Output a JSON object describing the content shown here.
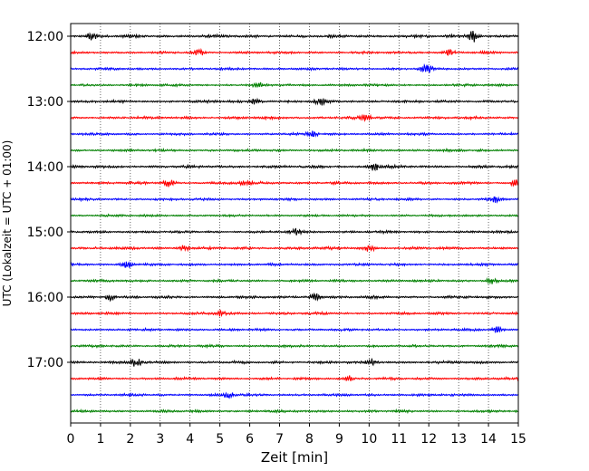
{
  "chart_data": {
    "type": "line",
    "title": "",
    "xlabel": "Zeit  [min]",
    "ylabel": "UTC (Lokalzeit = UTC + 01:00)",
    "xlim": [
      0,
      15
    ],
    "x_ticks": [
      0,
      1,
      2,
      3,
      4,
      5,
      6,
      7,
      8,
      9,
      10,
      11,
      12,
      13,
      14,
      15
    ],
    "grid": "vertical dotted at x ticks",
    "y_ticks": [
      "12:00",
      "13:00",
      "14:00",
      "15:00",
      "16:00",
      "17:00"
    ],
    "trace_minutes": 15,
    "trace_start": "12:00",
    "trace_count": 24,
    "color_cycle": [
      "#000000",
      "#ff0000",
      "#0000ff",
      "#008000"
    ],
    "series": [
      {
        "start": "12:00",
        "color": "#000000",
        "amplitude": 0.12,
        "bursts": [
          {
            "x": 0.7,
            "amplitude": 0.25
          },
          {
            "x": 13.5,
            "amplitude": 0.4
          }
        ]
      },
      {
        "start": "12:15",
        "color": "#ff0000",
        "amplitude": 0.1,
        "bursts": [
          {
            "x": 4.3,
            "amplitude": 0.2
          },
          {
            "x": 12.7,
            "amplitude": 0.2
          }
        ]
      },
      {
        "start": "12:30",
        "color": "#0000ff",
        "amplitude": 0.1,
        "bursts": [
          {
            "x": 11.9,
            "amplitude": 0.45
          }
        ]
      },
      {
        "start": "12:45",
        "color": "#008000",
        "amplitude": 0.1,
        "bursts": [
          {
            "x": 6.3,
            "amplitude": 0.15
          }
        ]
      },
      {
        "start": "13:00",
        "color": "#000000",
        "amplitude": 0.11,
        "bursts": [
          {
            "x": 6.2,
            "amplitude": 0.2
          },
          {
            "x": 8.4,
            "amplitude": 0.2
          }
        ]
      },
      {
        "start": "13:15",
        "color": "#ff0000",
        "amplitude": 0.11,
        "bursts": [
          {
            "x": 9.9,
            "amplitude": 0.25
          }
        ]
      },
      {
        "start": "13:30",
        "color": "#0000ff",
        "amplitude": 0.1,
        "bursts": [
          {
            "x": 8.1,
            "amplitude": 0.2
          }
        ]
      },
      {
        "start": "13:45",
        "color": "#008000",
        "amplitude": 0.1,
        "bursts": []
      },
      {
        "start": "14:00",
        "color": "#000000",
        "amplitude": 0.11,
        "bursts": [
          {
            "x": 10.2,
            "amplitude": 0.3
          }
        ]
      },
      {
        "start": "14:15",
        "color": "#ff0000",
        "amplitude": 0.11,
        "bursts": [
          {
            "x": 3.3,
            "amplitude": 0.25
          },
          {
            "x": 5.8,
            "amplitude": 0.2
          },
          {
            "x": 14.9,
            "amplitude": 0.2
          }
        ]
      },
      {
        "start": "14:30",
        "color": "#0000ff",
        "amplitude": 0.1,
        "bursts": [
          {
            "x": 14.2,
            "amplitude": 0.2
          }
        ]
      },
      {
        "start": "14:45",
        "color": "#008000",
        "amplitude": 0.09,
        "bursts": []
      },
      {
        "start": "15:00",
        "color": "#000000",
        "amplitude": 0.1,
        "bursts": [
          {
            "x": 7.5,
            "amplitude": 0.2
          }
        ]
      },
      {
        "start": "15:15",
        "color": "#ff0000",
        "amplitude": 0.11,
        "bursts": [
          {
            "x": 10.0,
            "amplitude": 0.25
          },
          {
            "x": 3.8,
            "amplitude": 0.2
          }
        ]
      },
      {
        "start": "15:30",
        "color": "#0000ff",
        "amplitude": 0.1,
        "bursts": [
          {
            "x": 1.9,
            "amplitude": 0.3
          }
        ]
      },
      {
        "start": "15:45",
        "color": "#008000",
        "amplitude": 0.1,
        "bursts": [
          {
            "x": 14.1,
            "amplitude": 0.2
          }
        ]
      },
      {
        "start": "16:00",
        "color": "#000000",
        "amplitude": 0.11,
        "bursts": [
          {
            "x": 1.3,
            "amplitude": 0.3
          },
          {
            "x": 8.2,
            "amplitude": 0.25
          }
        ]
      },
      {
        "start": "16:15",
        "color": "#ff0000",
        "amplitude": 0.1,
        "bursts": [
          {
            "x": 5.0,
            "amplitude": 0.2
          }
        ]
      },
      {
        "start": "16:30",
        "color": "#0000ff",
        "amplitude": 0.1,
        "bursts": [
          {
            "x": 14.3,
            "amplitude": 0.2
          }
        ]
      },
      {
        "start": "16:45",
        "color": "#008000",
        "amplitude": 0.1,
        "bursts": []
      },
      {
        "start": "17:00",
        "color": "#000000",
        "amplitude": 0.11,
        "bursts": [
          {
            "x": 2.2,
            "amplitude": 0.3
          },
          {
            "x": 10.1,
            "amplitude": 0.2
          }
        ]
      },
      {
        "start": "17:15",
        "color": "#ff0000",
        "amplitude": 0.1,
        "bursts": [
          {
            "x": 9.3,
            "amplitude": 0.2
          }
        ]
      },
      {
        "start": "17:30",
        "color": "#0000ff",
        "amplitude": 0.1,
        "bursts": [
          {
            "x": 5.3,
            "amplitude": 0.25
          }
        ]
      },
      {
        "start": "17:45",
        "color": "#008000",
        "amplitude": 0.1,
        "bursts": []
      }
    ]
  }
}
